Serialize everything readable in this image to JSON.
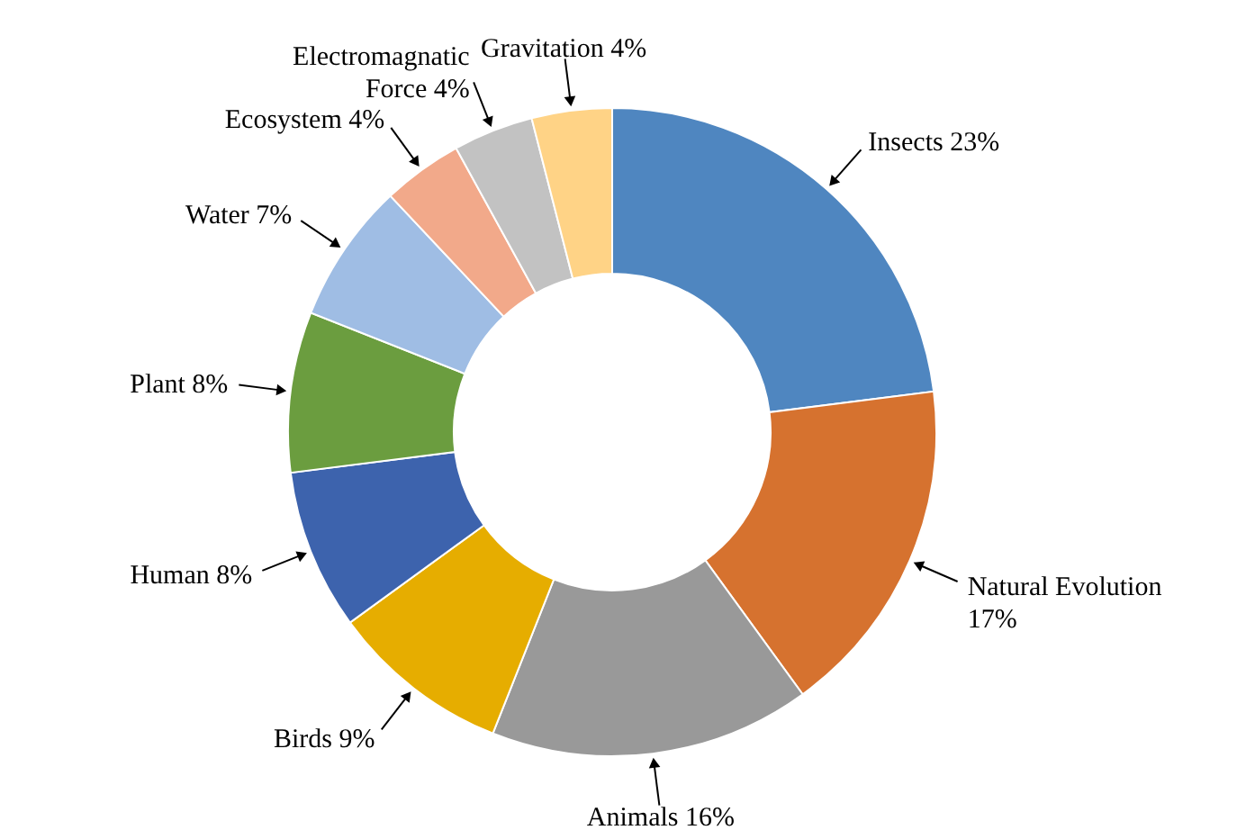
{
  "chart_data": {
    "type": "donut",
    "categories": [
      "Insects",
      "Natural Evolution",
      "Animals",
      "Birds",
      "Human",
      "Plant",
      "Water",
      "Ecosystem",
      "Electromagnatic Force",
      "Gravitation"
    ],
    "values": [
      23,
      17,
      16,
      9,
      8,
      8,
      7,
      4,
      4,
      4
    ],
    "value_labels": [
      "23%",
      "17%",
      "16%",
      "9%",
      "8%",
      "8%",
      "7%",
      "4%",
      "4%",
      "4%"
    ],
    "colors": [
      "#4f86c0",
      "#d6722f",
      "#999999",
      "#e6ad00",
      "#3d63ad",
      "#6b9d3f",
      "#9fbde4",
      "#f2a98a",
      "#c2c2c2",
      "#ffd386"
    ]
  }
}
